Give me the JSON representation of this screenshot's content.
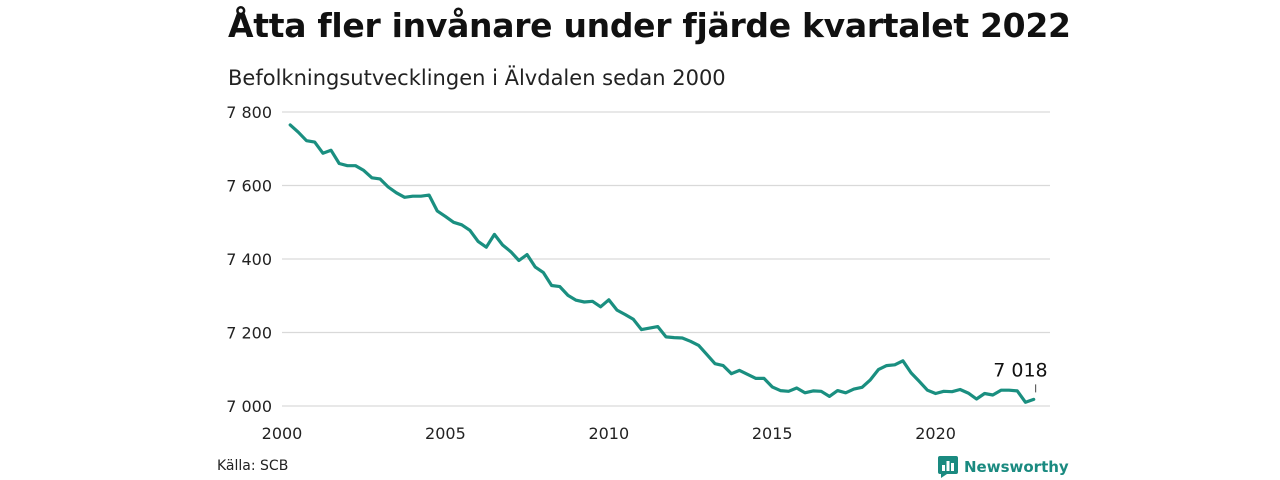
{
  "title": "Åtta fler invånare under fjärde kvartalet 2022",
  "subtitle": "Befolkningsutvecklingen i Älvdalen sedan 2000",
  "source": "Källa: SCB",
  "brand": "Newsworthy",
  "colors": {
    "line": "#1a8f80",
    "grid": "#d9d9d9",
    "brand": "#1a8a80"
  },
  "chart_data": {
    "type": "line",
    "title": "Åtta fler invånare under fjärde kvartalet 2022",
    "subtitle": "Befolkningsutvecklingen i Älvdalen sedan 2000",
    "xlabel": "",
    "ylabel": "",
    "ylim": [
      7000,
      7800
    ],
    "xlim": [
      2000,
      2023.5
    ],
    "grid": true,
    "y_ticks": [
      {
        "value": 7000,
        "label": "7 000"
      },
      {
        "value": 7200,
        "label": "7 200"
      },
      {
        "value": 7400,
        "label": "7 400"
      },
      {
        "value": 7600,
        "label": "7 600"
      },
      {
        "value": 7800,
        "label": "7 800"
      }
    ],
    "x_ticks": [
      {
        "value": 2000,
        "label": "2000"
      },
      {
        "value": 2005,
        "label": "2005"
      },
      {
        "value": 2010,
        "label": "2010"
      },
      {
        "value": 2015,
        "label": "2015"
      },
      {
        "value": 2020,
        "label": "2020"
      }
    ],
    "end_label": "7 018",
    "series": [
      {
        "x": [
          2000.25,
          2000.5,
          2000.75,
          2001,
          2001.25,
          2001.5,
          2001.75,
          2002,
          2002.25,
          2002.5,
          2002.75,
          2003,
          2003.25,
          2003.5,
          2003.75,
          2004,
          2004.25,
          2004.5,
          2004.75,
          2005,
          2005.25,
          2005.5,
          2005.75,
          2006,
          2006.25,
          2006.5,
          2006.75,
          2007,
          2007.25,
          2007.5,
          2007.75,
          2008,
          2008.25,
          2008.5,
          2008.75,
          2009,
          2009.25,
          2009.5,
          2009.75,
          2010,
          2010.25,
          2010.5,
          2010.75,
          2011,
          2011.25,
          2011.5,
          2011.75,
          2012,
          2012.25,
          2012.5,
          2012.75,
          2013,
          2013.25,
          2013.5,
          2013.75,
          2014,
          2014.25,
          2014.5,
          2014.75,
          2015,
          2015.25,
          2015.5,
          2015.75,
          2016,
          2016.25,
          2016.5,
          2016.75,
          2017,
          2017.25,
          2017.5,
          2017.75,
          2018,
          2018.25,
          2018.5,
          2018.75,
          2019,
          2019.25,
          2019.5,
          2019.75,
          2020,
          2020.25,
          2020.5,
          2020.75,
          2021,
          2021.25,
          2021.5,
          2021.75,
          2022,
          2022.25,
          2022.5,
          2022.75,
          2023
        ],
        "values": [
          7765,
          7745,
          7722,
          7718,
          7688,
          7696,
          7660,
          7654,
          7654,
          7641,
          7621,
          7618,
          7596,
          7580,
          7568,
          7571,
          7571,
          7574,
          7531,
          7516,
          7500,
          7493,
          7478,
          7448,
          7432,
          7467,
          7438,
          7420,
          7396,
          7412,
          7378,
          7363,
          7328,
          7325,
          7301,
          7288,
          7283,
          7285,
          7270,
          7289,
          7261,
          7249,
          7236,
          7208,
          7212,
          7216,
          7188,
          7186,
          7185,
          7176,
          7165,
          7140,
          7115,
          7110,
          7088,
          7097,
          7086,
          7075,
          7075,
          7052,
          7042,
          7040,
          7049,
          7036,
          7041,
          7040,
          7026,
          7042,
          7036,
          7046,
          7051,
          7071,
          7099,
          7110,
          7112,
          7123,
          7090,
          7067,
          7043,
          7034,
          7040,
          7039,
          7045,
          7035,
          7019,
          7034,
          7030,
          7043,
          7043,
          7041,
          7010,
          7018
        ]
      }
    ]
  }
}
